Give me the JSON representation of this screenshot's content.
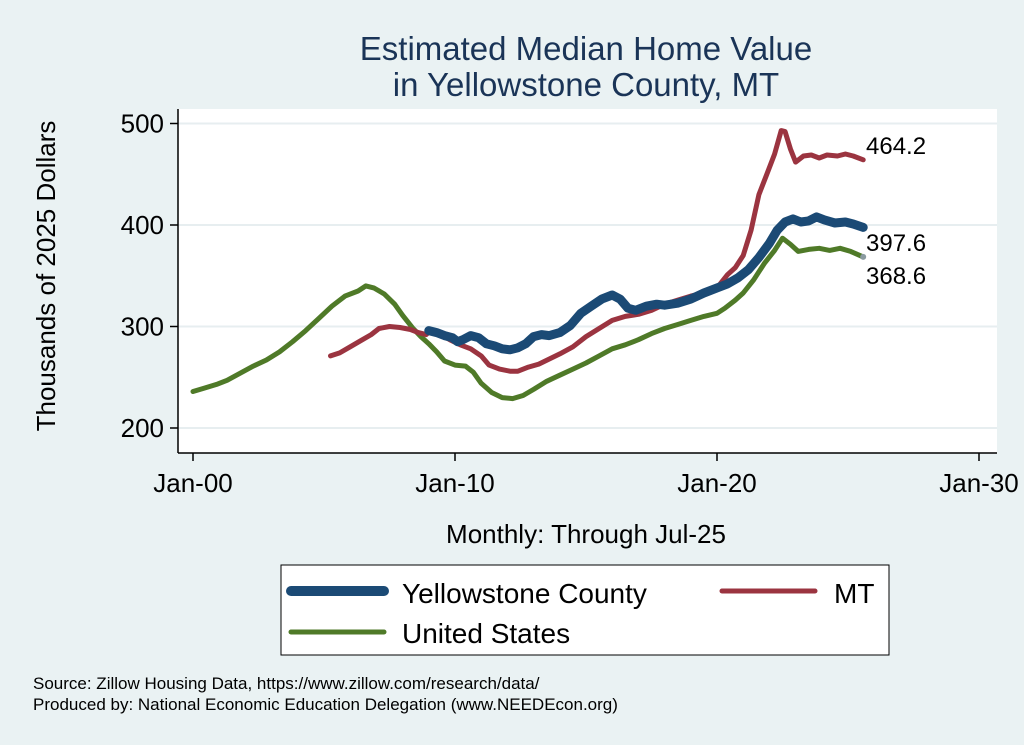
{
  "chart_data": {
    "type": "line",
    "title": [
      "Estimated Median Home Value",
      "in Yellowstone County, MT"
    ],
    "ylabel": "Thousands of 2025 Dollars",
    "xlabel": "Monthly: Through Jul-25",
    "ylim": [
      190,
      515
    ],
    "yticks": [
      200,
      300,
      400,
      500
    ],
    "xlim": [
      2000.0,
      2030.0
    ],
    "xticks": [
      {
        "value": 2000.0,
        "label": "Jan-00"
      },
      {
        "value": 2010.0,
        "label": "Jan-10"
      },
      {
        "value": 2020.0,
        "label": "Jan-20"
      },
      {
        "value": 2030.0,
        "label": "Jan-30"
      }
    ],
    "grid": true,
    "legend": "bottom",
    "series": [
      {
        "name": "Yellowstone County",
        "color": "#1b4a75",
        "width": 9,
        "end_label": "397.6",
        "points": [
          [
            2009.0,
            296
          ],
          [
            2009.3,
            294
          ],
          [
            2009.6,
            291
          ],
          [
            2009.9,
            289
          ],
          [
            2010.1,
            285
          ],
          [
            2010.3,
            287
          ],
          [
            2010.6,
            291
          ],
          [
            2010.9,
            289
          ],
          [
            2011.2,
            283
          ],
          [
            2011.5,
            281
          ],
          [
            2011.8,
            278
          ],
          [
            2012.1,
            277
          ],
          [
            2012.4,
            279
          ],
          [
            2012.7,
            283
          ],
          [
            2013.0,
            290
          ],
          [
            2013.3,
            292
          ],
          [
            2013.6,
            291
          ],
          [
            2014.0,
            294
          ],
          [
            2014.4,
            301
          ],
          [
            2014.8,
            313
          ],
          [
            2015.2,
            320
          ],
          [
            2015.6,
            327
          ],
          [
            2016.0,
            331
          ],
          [
            2016.3,
            327
          ],
          [
            2016.6,
            318
          ],
          [
            2016.9,
            316
          ],
          [
            2017.3,
            320
          ],
          [
            2017.7,
            322
          ],
          [
            2018.0,
            321
          ],
          [
            2018.5,
            323
          ],
          [
            2019.0,
            327
          ],
          [
            2019.5,
            333
          ],
          [
            2020.0,
            338
          ],
          [
            2020.4,
            342
          ],
          [
            2020.8,
            348
          ],
          [
            2021.2,
            356
          ],
          [
            2021.6,
            368
          ],
          [
            2022.0,
            382
          ],
          [
            2022.3,
            395
          ],
          [
            2022.6,
            403
          ],
          [
            2022.9,
            406
          ],
          [
            2023.2,
            403
          ],
          [
            2023.5,
            404
          ],
          [
            2023.8,
            408
          ],
          [
            2024.1,
            405
          ],
          [
            2024.5,
            402
          ],
          [
            2024.9,
            403
          ],
          [
            2025.2,
            401
          ],
          [
            2025.58,
            397.6
          ]
        ]
      },
      {
        "name": "MT",
        "color": "#9b3440",
        "width": 5,
        "end_label": "464.2",
        "points": [
          [
            2005.25,
            271
          ],
          [
            2005.6,
            274
          ],
          [
            2006.0,
            280
          ],
          [
            2006.4,
            286
          ],
          [
            2006.8,
            292
          ],
          [
            2007.1,
            298
          ],
          [
            2007.5,
            300
          ],
          [
            2007.9,
            299
          ],
          [
            2008.3,
            297
          ],
          [
            2008.6,
            294
          ],
          [
            2008.9,
            292
          ],
          [
            2009.1,
            297
          ],
          [
            2009.4,
            293
          ],
          [
            2009.8,
            287
          ],
          [
            2010.2,
            282
          ],
          [
            2010.6,
            278
          ],
          [
            2011.0,
            271
          ],
          [
            2011.3,
            262
          ],
          [
            2011.7,
            258
          ],
          [
            2012.1,
            256
          ],
          [
            2012.4,
            256
          ],
          [
            2012.8,
            260
          ],
          [
            2013.2,
            263
          ],
          [
            2013.6,
            268
          ],
          [
            2014.0,
            273
          ],
          [
            2014.5,
            280
          ],
          [
            2015.0,
            290
          ],
          [
            2015.5,
            298
          ],
          [
            2016.0,
            306
          ],
          [
            2016.5,
            310
          ],
          [
            2017.0,
            312
          ],
          [
            2017.5,
            316
          ],
          [
            2018.0,
            322
          ],
          [
            2018.5,
            326
          ],
          [
            2019.0,
            330
          ],
          [
            2019.5,
            333
          ],
          [
            2020.0,
            338
          ],
          [
            2020.4,
            351
          ],
          [
            2020.7,
            358
          ],
          [
            2021.0,
            370
          ],
          [
            2021.3,
            395
          ],
          [
            2021.6,
            430
          ],
          [
            2021.9,
            450
          ],
          [
            2022.2,
            470
          ],
          [
            2022.45,
            493
          ],
          [
            2022.6,
            492
          ],
          [
            2022.8,
            475
          ],
          [
            2023.0,
            462
          ],
          [
            2023.3,
            468
          ],
          [
            2023.6,
            469
          ],
          [
            2023.9,
            466
          ],
          [
            2024.2,
            469
          ],
          [
            2024.6,
            468
          ],
          [
            2024.9,
            470
          ],
          [
            2025.2,
            468
          ],
          [
            2025.58,
            464.2
          ]
        ]
      },
      {
        "name": "United States",
        "color": "#4f7a28",
        "width": 5,
        "end_label": "368.6",
        "points": [
          [
            2000.0,
            236
          ],
          [
            2000.4,
            239
          ],
          [
            2000.9,
            243
          ],
          [
            2001.3,
            247
          ],
          [
            2001.8,
            254
          ],
          [
            2002.3,
            261
          ],
          [
            2002.8,
            267
          ],
          [
            2003.3,
            275
          ],
          [
            2003.8,
            285
          ],
          [
            2004.3,
            296
          ],
          [
            2004.8,
            308
          ],
          [
            2005.3,
            320
          ],
          [
            2005.8,
            330
          ],
          [
            2006.3,
            335
          ],
          [
            2006.6,
            340
          ],
          [
            2006.9,
            338
          ],
          [
            2007.3,
            332
          ],
          [
            2007.7,
            322
          ],
          [
            2008.0,
            311
          ],
          [
            2008.4,
            298
          ],
          [
            2008.7,
            290
          ],
          [
            2009.0,
            283
          ],
          [
            2009.3,
            275
          ],
          [
            2009.6,
            266
          ],
          [
            2010.0,
            262
          ],
          [
            2010.4,
            261
          ],
          [
            2010.7,
            255
          ],
          [
            2011.0,
            244
          ],
          [
            2011.4,
            235
          ],
          [
            2011.8,
            230
          ],
          [
            2012.2,
            229
          ],
          [
            2012.6,
            232
          ],
          [
            2013.0,
            238
          ],
          [
            2013.5,
            246
          ],
          [
            2014.0,
            252
          ],
          [
            2014.5,
            258
          ],
          [
            2015.0,
            264
          ],
          [
            2015.5,
            271
          ],
          [
            2016.0,
            278
          ],
          [
            2016.5,
            282
          ],
          [
            2017.0,
            287
          ],
          [
            2017.5,
            293
          ],
          [
            2018.0,
            298
          ],
          [
            2018.5,
            302
          ],
          [
            2019.0,
            306
          ],
          [
            2019.5,
            310
          ],
          [
            2020.0,
            313
          ],
          [
            2020.3,
            318
          ],
          [
            2020.7,
            326
          ],
          [
            2021.0,
            333
          ],
          [
            2021.4,
            346
          ],
          [
            2021.8,
            362
          ],
          [
            2022.2,
            375
          ],
          [
            2022.5,
            387
          ],
          [
            2022.8,
            381
          ],
          [
            2023.1,
            374
          ],
          [
            2023.5,
            376
          ],
          [
            2023.9,
            377
          ],
          [
            2024.3,
            375
          ],
          [
            2024.7,
            377
          ],
          [
            2025.1,
            374
          ],
          [
            2025.58,
            368.6
          ]
        ]
      }
    ]
  },
  "notes": [
    "Source: Zillow Housing Data, https://www.zillow.com/research/data/",
    "Produced by: National Economic Education Delegation (www.NEEDEcon.org)"
  ]
}
